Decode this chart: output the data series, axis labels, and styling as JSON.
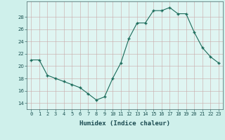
{
  "x": [
    0,
    1,
    2,
    3,
    4,
    5,
    6,
    7,
    8,
    9,
    10,
    11,
    12,
    13,
    14,
    15,
    16,
    17,
    18,
    19,
    20,
    21,
    22,
    23
  ],
  "y": [
    21,
    21,
    18.5,
    18,
    17.5,
    17,
    16.5,
    15.5,
    14.5,
    15,
    18,
    20.5,
    24.5,
    27,
    27,
    29,
    29,
    29.5,
    28.5,
    28.5,
    25.5,
    23,
    21.5,
    20.5
  ],
  "xlabel": "Humidex (Indice chaleur)",
  "xlim": [
    -0.5,
    23.5
  ],
  "ylim": [
    13,
    30.5
  ],
  "yticks": [
    14,
    16,
    18,
    20,
    22,
    24,
    26,
    28
  ],
  "xticks": [
    0,
    1,
    2,
    3,
    4,
    5,
    6,
    7,
    8,
    9,
    10,
    11,
    12,
    13,
    14,
    15,
    16,
    17,
    18,
    19,
    20,
    21,
    22,
    23
  ],
  "line_color": "#1a6b5a",
  "marker": "+",
  "marker_size": 3.5,
  "marker_linewidth": 1.0,
  "line_width": 0.8,
  "bg_color": "#cff0eb",
  "grid_color": "#c8a8a8",
  "plot_bg": "#dff5f2",
  "tick_color": "#1a5050",
  "xlabel_color": "#1a4a50",
  "xlabel_fontsize": 6.5,
  "tick_fontsize": 5.0,
  "grid_linewidth": 0.4
}
